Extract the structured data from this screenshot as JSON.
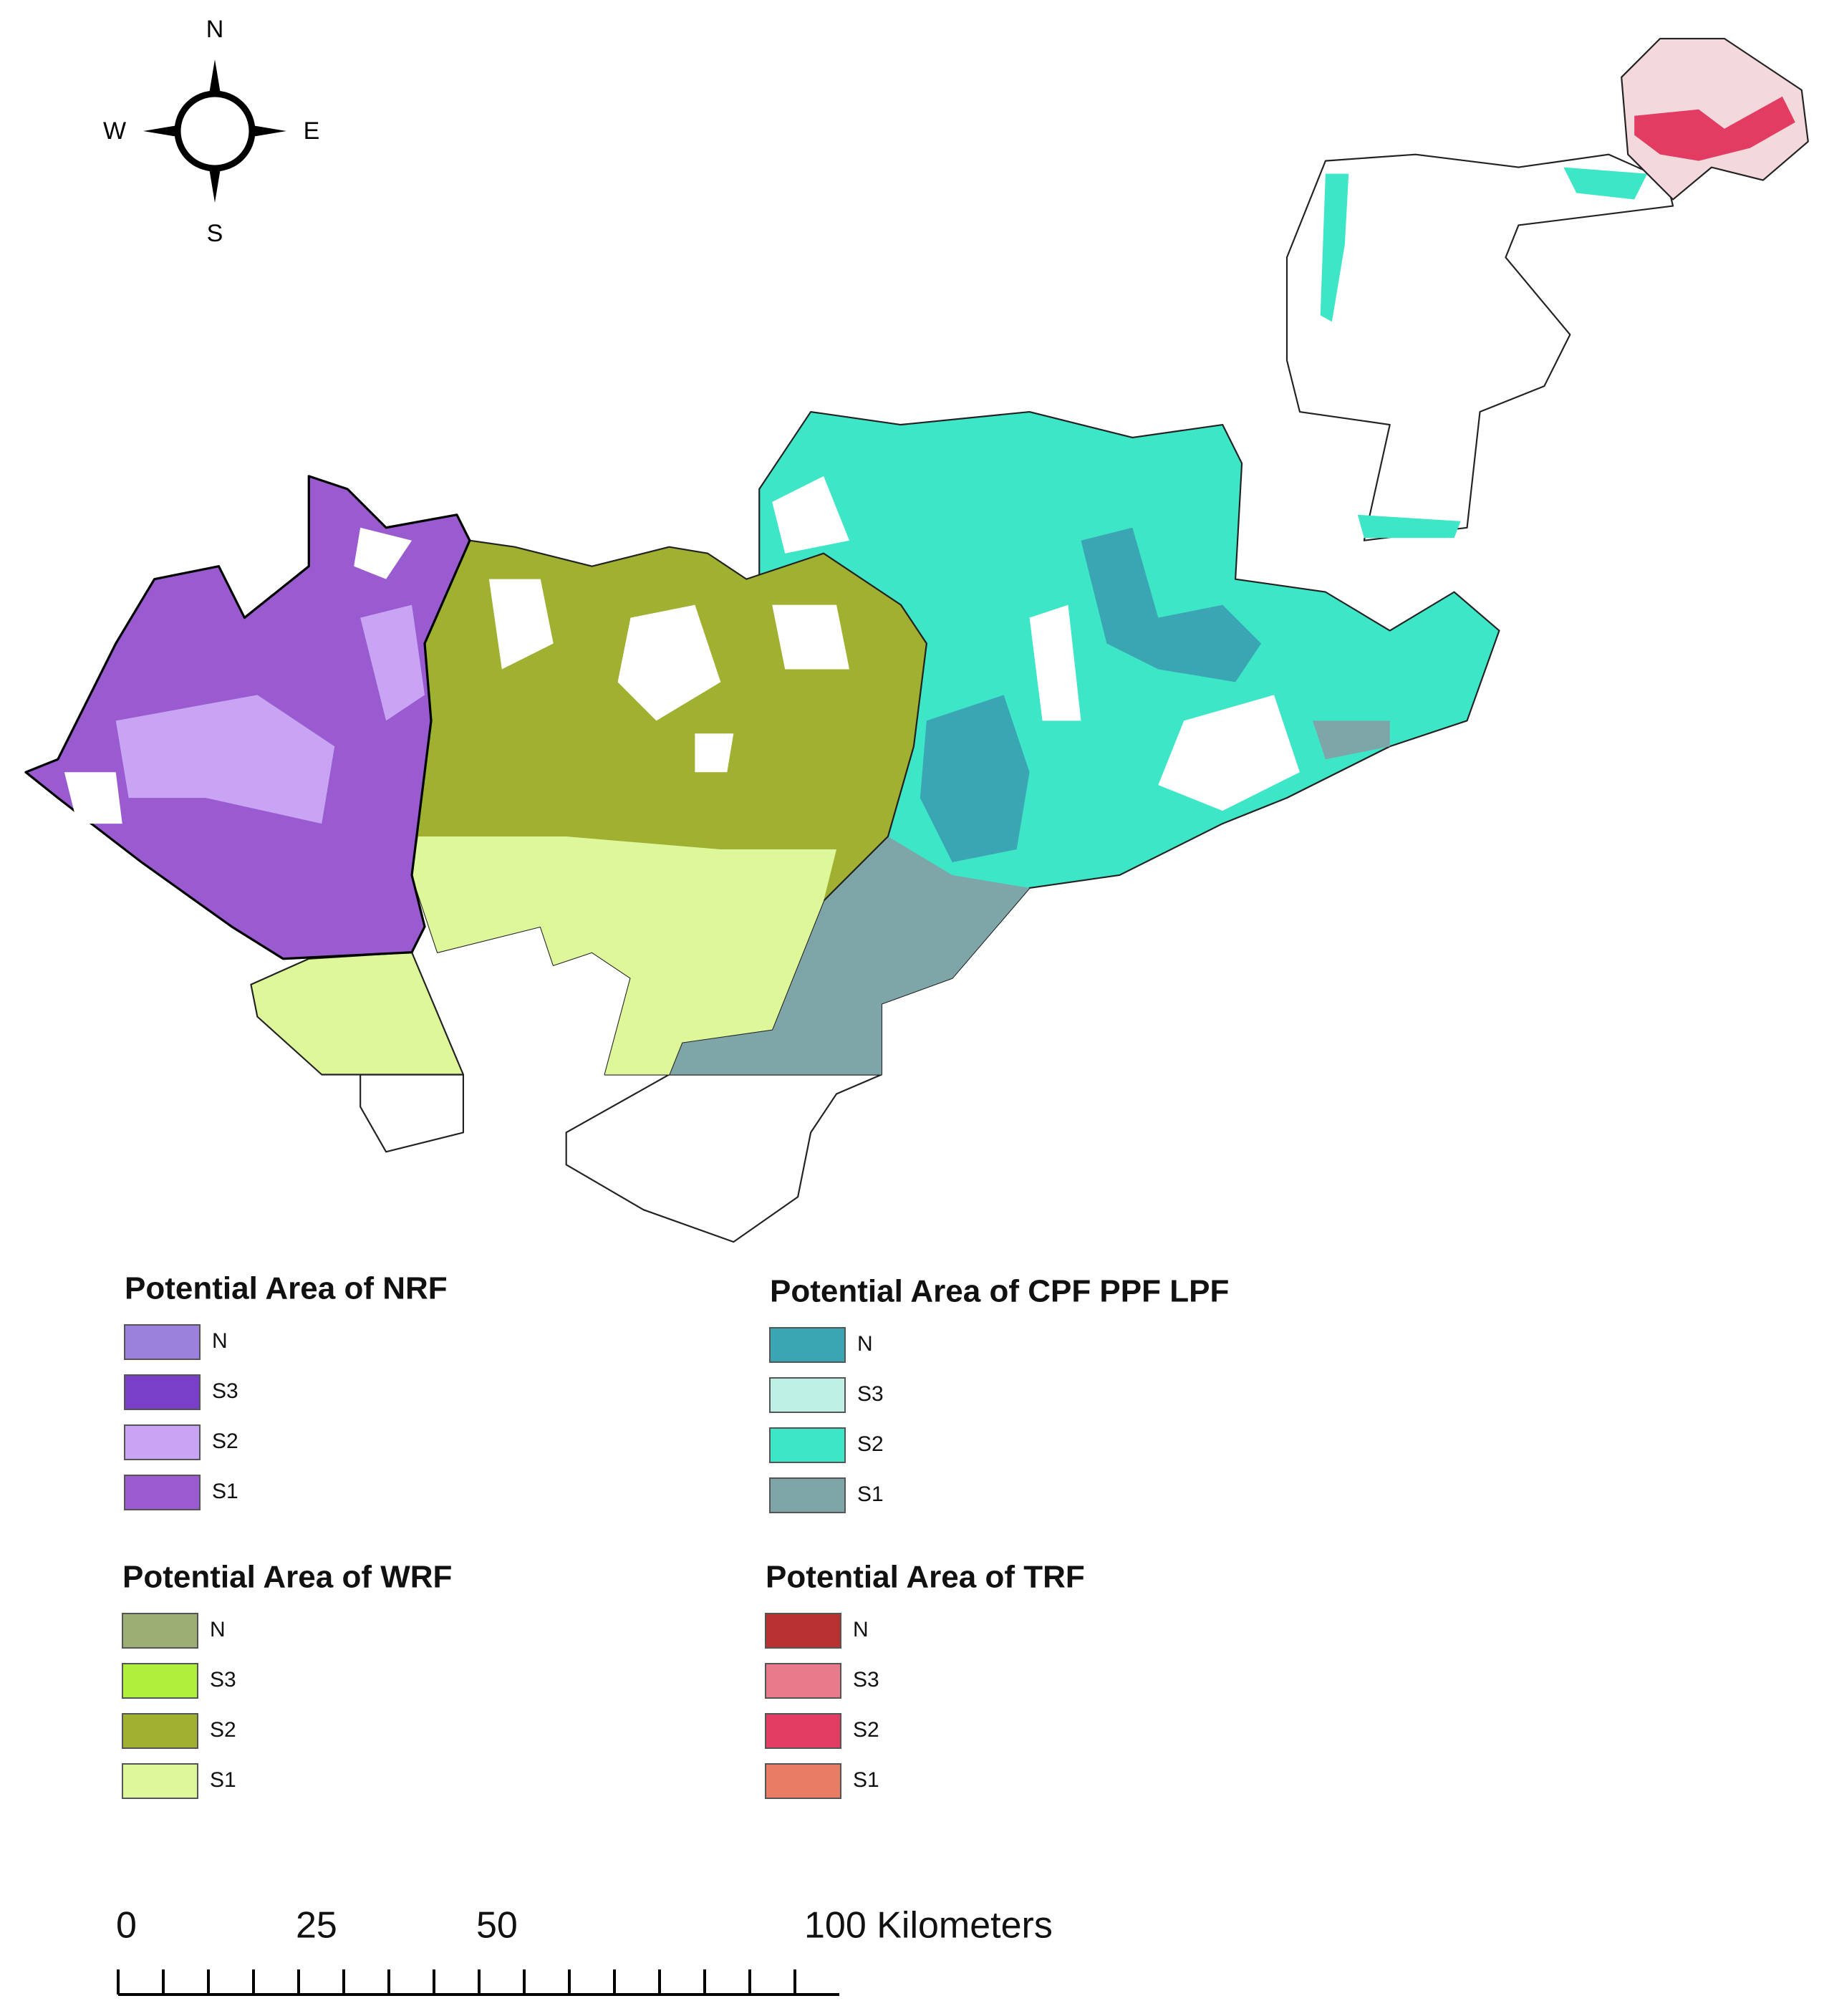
{
  "compass": {
    "north": "N",
    "east": "E",
    "south": "S",
    "west": "W"
  },
  "legends": [
    {
      "title": "Potential Area of NRF",
      "items": [
        {
          "label": "N",
          "color": "#9b80dc"
        },
        {
          "label": "S3",
          "color": "#7a3fc8"
        },
        {
          "label": "S2",
          "color": "#c9a4f4"
        },
        {
          "label": "S1",
          "color": "#9a5ad0"
        }
      ]
    },
    {
      "title": "Potential Area of CPF PPF LPF",
      "items": [
        {
          "label": "N",
          "color": "#3aa6b4"
        },
        {
          "label": "S3",
          "color": "#bff0e4"
        },
        {
          "label": "S2",
          "color": "#3ee6c8"
        },
        {
          "label": "S1",
          "color": "#7ea6a8"
        }
      ]
    },
    {
      "title": "Potential Area of WRF",
      "items": [
        {
          "label": "N",
          "color": "#9cae74"
        },
        {
          "label": "S3",
          "color": "#aef03c"
        },
        {
          "label": "S2",
          "color": "#a0b030"
        },
        {
          "label": "S1",
          "color": "#ddf79a"
        }
      ]
    },
    {
      "title": "Potential Area of TRF",
      "items": [
        {
          "label": "N",
          "color": "#b83232"
        },
        {
          "label": "S3",
          "color": "#e87a8c"
        },
        {
          "label": "S2",
          "color": "#e23c62"
        },
        {
          "label": "S1",
          "color": "#e87c64"
        }
      ]
    }
  ],
  "scale_bar": {
    "labels": [
      "0",
      "25",
      "50",
      "100 Kilometers"
    ]
  }
}
